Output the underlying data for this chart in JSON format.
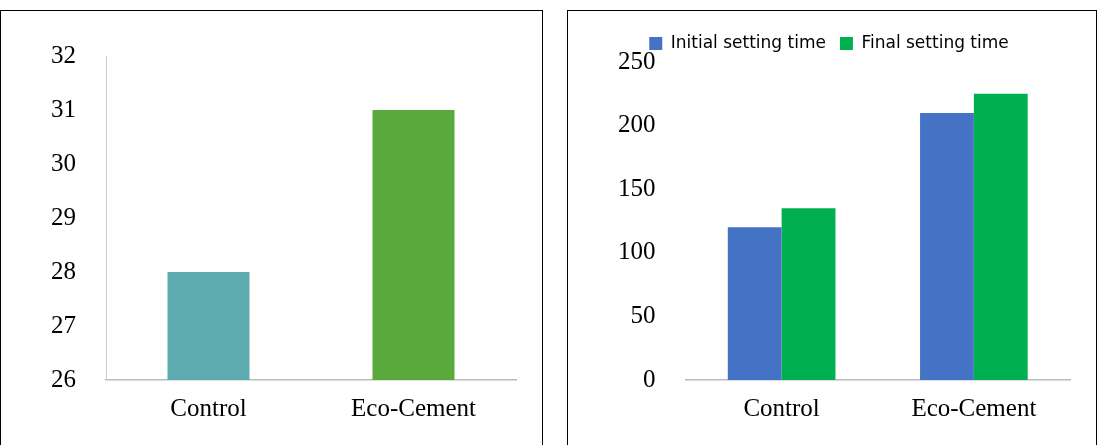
{
  "chart_data": [
    {
      "type": "bar",
      "categories": [
        "Control",
        "Eco-Cement"
      ],
      "series": [
        {
          "color": "#5eabb0",
          "colors": [
            "#5eabb0",
            "#5aa93c"
          ],
          "values": [
            28,
            31
          ]
        }
      ],
      "ylim": [
        26,
        32
      ],
      "yticks": [
        26,
        27,
        28,
        29,
        30,
        31,
        32
      ],
      "grid": false,
      "legend": false
    },
    {
      "type": "bar",
      "categories": [
        "Control",
        "Eco-Cement"
      ],
      "series": [
        {
          "name": "Initial setting time",
          "color": "#4472c4",
          "values": [
            120,
            210
          ]
        },
        {
          "name": "Final setting time",
          "color": "#00b050",
          "values": [
            135,
            225
          ]
        }
      ],
      "ylim": [
        0,
        250
      ],
      "yticks": [
        0,
        50,
        100,
        150,
        200,
        250
      ],
      "grid": false,
      "legend": "top"
    }
  ]
}
